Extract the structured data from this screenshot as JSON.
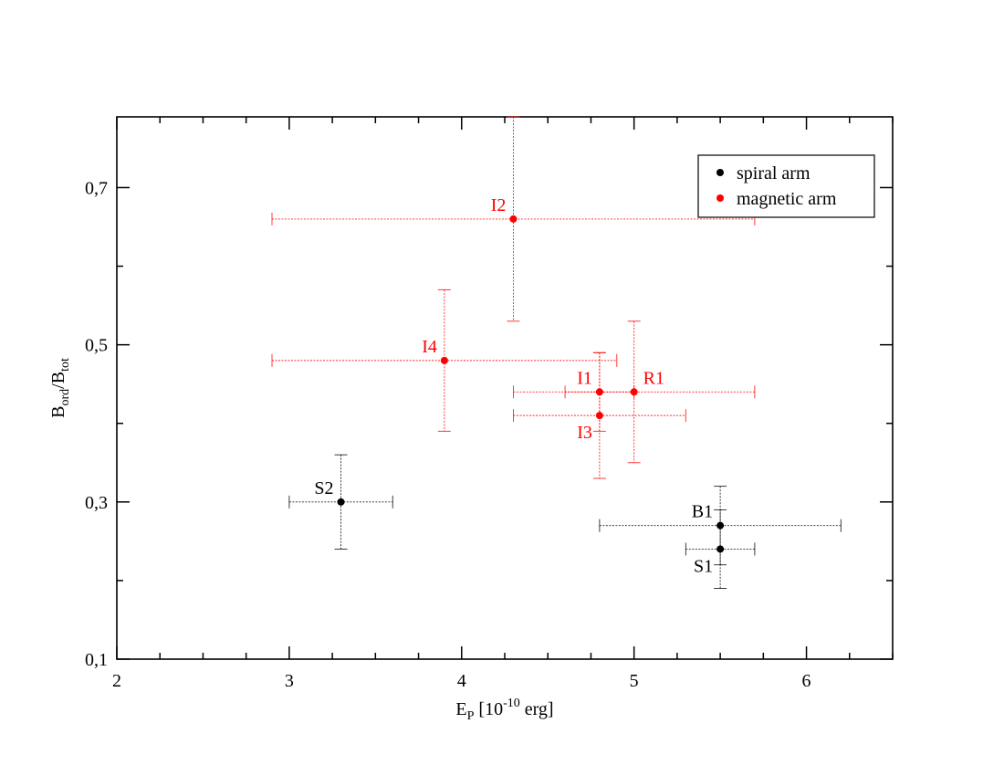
{
  "chart_data": {
    "type": "scatter",
    "xlabel": {
      "base": "E",
      "sub": "P",
      "rest": " [10",
      "sup": "-10",
      "end": " erg]"
    },
    "ylabel": {
      "b1": "B",
      "s1": "ord",
      "mid": "/B",
      "s2": "tot"
    },
    "xlim": [
      2,
      6.5
    ],
    "ylim": [
      0.1,
      0.79
    ],
    "xticks": [
      {
        "value": 2,
        "label": "2"
      },
      {
        "value": 3,
        "label": "3"
      },
      {
        "value": 4,
        "label": "4"
      },
      {
        "value": 5,
        "label": "5"
      },
      {
        "value": 6,
        "label": "6"
      }
    ],
    "yticks": [
      {
        "value": 0.1,
        "label": "0,1"
      },
      {
        "value": 0.3,
        "label": "0,3"
      },
      {
        "value": 0.5,
        "label": "0,5"
      },
      {
        "value": 0.7,
        "label": "0,7"
      }
    ],
    "x_minor_step": 0.25,
    "y_minor_step": 0.1,
    "grid": false,
    "legend_position": "top-right",
    "series": [
      {
        "name": "spiral arm",
        "color": "#000000",
        "points": [
          {
            "label": "S2",
            "x": 3.3,
            "y": 0.3,
            "xerr": 0.3,
            "yerr": 0.06,
            "label_pos": "upper-left"
          },
          {
            "label": "B1",
            "x": 5.5,
            "y": 0.27,
            "xerr": 0.7,
            "yerr": 0.05,
            "label_pos": "upper-left"
          },
          {
            "label": "S1",
            "x": 5.5,
            "y": 0.24,
            "xerr": 0.2,
            "yerr": 0.05,
            "label_pos": "lower-left"
          }
        ]
      },
      {
        "name": "magnetic arm",
        "color": "#ff0000",
        "points": [
          {
            "label": "I2",
            "x": 4.3,
            "y": 0.66,
            "xerr": 1.4,
            "yerr": 0.13,
            "label_pos": "upper-left"
          },
          {
            "label": "I4",
            "x": 3.9,
            "y": 0.48,
            "xerr": 1.0,
            "yerr": 0.09,
            "label_pos": "upper-left"
          },
          {
            "label": "I1",
            "x": 4.8,
            "y": 0.44,
            "xerr": 0.2,
            "yerr": 0.05,
            "label_pos": "upper-left"
          },
          {
            "label": "R1",
            "x": 5.0,
            "y": 0.44,
            "xerr": 0.7,
            "yerr": 0.09,
            "label_pos": "upper-right"
          },
          {
            "label": "I3",
            "x": 4.8,
            "y": 0.41,
            "xerr": 0.5,
            "yerr": 0.08,
            "label_pos": "lower-left"
          }
        ]
      }
    ]
  }
}
